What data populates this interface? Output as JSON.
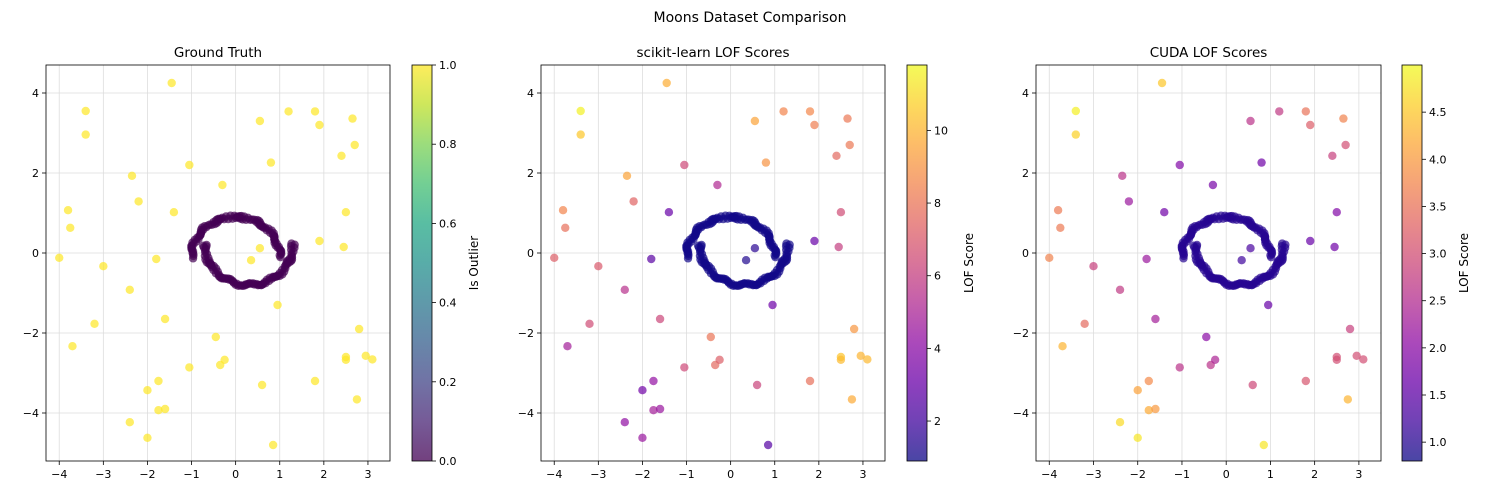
{
  "figure": {
    "suptitle": "Moons Dataset Comparison"
  },
  "colors": {
    "viridis": [
      "#440154",
      "#482475",
      "#414487",
      "#355f8d",
      "#2a788e",
      "#21918c",
      "#22a884",
      "#44bf70",
      "#7ad151",
      "#bddf26",
      "#fde725"
    ],
    "plasma": [
      "#0d0887",
      "#41049d",
      "#6a00a8",
      "#8f0da4",
      "#b12a90",
      "#cc4778",
      "#e16462",
      "#f2844b",
      "#fca636",
      "#fcce25",
      "#f0f921"
    ],
    "grid": "#dddddd"
  },
  "chart_data": [
    {
      "type": "scatter",
      "title": "Ground Truth",
      "xlabel": "",
      "ylabel": "",
      "xlim": [
        -4.3,
        3.5
      ],
      "ylim": [
        -5.2,
        4.7
      ],
      "xticks": [
        -4,
        -3,
        -2,
        -1,
        0,
        1,
        2,
        3
      ],
      "yticks": [
        -4,
        -2,
        0,
        2,
        4
      ],
      "grid": true,
      "colormap": "viridis",
      "color_range": [
        0.0,
        1.0
      ],
      "colorbar": {
        "label": "Is Outlier",
        "ticks": [
          0.0,
          0.2,
          0.4,
          0.6,
          0.8,
          1.0
        ],
        "tick_labels": [
          "0.0",
          "0.2",
          "0.4",
          "0.6",
          "0.8",
          "1.0"
        ]
      },
      "inlier_value": 0.0,
      "outliers": [
        {
          "x": -4.0,
          "y": -0.12,
          "c": 1.0
        },
        {
          "x": -3.8,
          "y": 1.07,
          "c": 1.0
        },
        {
          "x": -3.75,
          "y": 0.63,
          "c": 1.0
        },
        {
          "x": -3.7,
          "y": -2.33,
          "c": 1.0
        },
        {
          "x": -3.4,
          "y": 3.55,
          "c": 1.0
        },
        {
          "x": -3.4,
          "y": 2.96,
          "c": 1.0
        },
        {
          "x": -3.0,
          "y": -0.33,
          "c": 1.0
        },
        {
          "x": -3.2,
          "y": -1.77,
          "c": 1.0
        },
        {
          "x": -2.35,
          "y": 1.93,
          "c": 1.0
        },
        {
          "x": -2.4,
          "y": -0.92,
          "c": 1.0
        },
        {
          "x": -2.2,
          "y": 1.29,
          "c": 1.0
        },
        {
          "x": -2.4,
          "y": -4.23,
          "c": 1.0
        },
        {
          "x": -2.0,
          "y": -3.43,
          "c": 1.0
        },
        {
          "x": -2.0,
          "y": -4.62,
          "c": 1.0
        },
        {
          "x": -1.8,
          "y": -0.15,
          "c": 1.0
        },
        {
          "x": -1.75,
          "y": -3.2,
          "c": 1.0
        },
        {
          "x": -1.75,
          "y": -3.93,
          "c": 1.0
        },
        {
          "x": -1.6,
          "y": -3.9,
          "c": 1.0
        },
        {
          "x": -1.6,
          "y": -1.65,
          "c": 1.0
        },
        {
          "x": -1.45,
          "y": 4.25,
          "c": 1.0
        },
        {
          "x": -1.4,
          "y": 1.02,
          "c": 1.0
        },
        {
          "x": -1.05,
          "y": 2.2,
          "c": 1.0
        },
        {
          "x": -1.05,
          "y": -2.86,
          "c": 1.0
        },
        {
          "x": -0.45,
          "y": -2.1,
          "c": 1.0
        },
        {
          "x": -0.35,
          "y": -2.8,
          "c": 1.0
        },
        {
          "x": -0.3,
          "y": 1.7,
          "c": 1.0
        },
        {
          "x": -0.25,
          "y": -2.67,
          "c": 1.0
        },
        {
          "x": 0.35,
          "y": -0.18,
          "c": 1.0
        },
        {
          "x": 0.55,
          "y": 0.12,
          "c": 1.0
        },
        {
          "x": 0.55,
          "y": 3.3,
          "c": 1.0
        },
        {
          "x": 0.6,
          "y": -3.3,
          "c": 1.0
        },
        {
          "x": 0.8,
          "y": 2.26,
          "c": 1.0
        },
        {
          "x": 0.85,
          "y": -4.8,
          "c": 1.0
        },
        {
          "x": 0.95,
          "y": -1.3,
          "c": 1.0
        },
        {
          "x": 1.2,
          "y": 3.54,
          "c": 1.0
        },
        {
          "x": 1.8,
          "y": 3.54,
          "c": 1.0
        },
        {
          "x": 1.9,
          "y": 3.2,
          "c": 1.0
        },
        {
          "x": 1.9,
          "y": 0.3,
          "c": 1.0
        },
        {
          "x": 1.8,
          "y": -3.2,
          "c": 1.0
        },
        {
          "x": 2.4,
          "y": 2.43,
          "c": 1.0
        },
        {
          "x": 2.45,
          "y": 0.15,
          "c": 1.0
        },
        {
          "x": 2.5,
          "y": 1.02,
          "c": 1.0
        },
        {
          "x": 2.5,
          "y": -2.6,
          "c": 1.0
        },
        {
          "x": 2.5,
          "y": -2.67,
          "c": 1.0
        },
        {
          "x": 2.65,
          "y": 3.36,
          "c": 1.0
        },
        {
          "x": 2.7,
          "y": 2.7,
          "c": 1.0
        },
        {
          "x": 2.75,
          "y": -3.66,
          "c": 1.0
        },
        {
          "x": 2.8,
          "y": -1.9,
          "c": 1.0
        },
        {
          "x": 2.95,
          "y": -2.57,
          "c": 1.0
        },
        {
          "x": 3.1,
          "y": -2.66,
          "c": 1.0
        }
      ]
    },
    {
      "type": "scatter",
      "title": "scikit-learn LOF Scores",
      "xlabel": "",
      "ylabel": "",
      "xlim": [
        -4.3,
        3.5
      ],
      "ylim": [
        -5.2,
        4.7
      ],
      "xticks": [
        -4,
        -3,
        -2,
        -1,
        0,
        1,
        2,
        3
      ],
      "yticks": [
        -4,
        -2,
        0,
        2,
        4
      ],
      "grid": true,
      "colormap": "plasma",
      "color_range": [
        0.9,
        11.8
      ],
      "colorbar": {
        "label": "LOF Score",
        "ticks": [
          2,
          4,
          6,
          8,
          10
        ],
        "tick_labels": [
          "2",
          "4",
          "6",
          "8",
          "10"
        ]
      },
      "inlier_value": 1.0,
      "outliers": [
        {
          "x": -4.0,
          "y": -0.12,
          "c": 7.2
        },
        {
          "x": -3.8,
          "y": 1.07,
          "c": 8.5
        },
        {
          "x": -3.75,
          "y": 0.63,
          "c": 7.8
        },
        {
          "x": -3.7,
          "y": -2.33,
          "c": 4.8
        },
        {
          "x": -3.4,
          "y": 3.55,
          "c": 11.6
        },
        {
          "x": -3.4,
          "y": 2.96,
          "c": 10.5
        },
        {
          "x": -3.0,
          "y": -0.33,
          "c": 7.0
        },
        {
          "x": -3.2,
          "y": -1.77,
          "c": 6.5
        },
        {
          "x": -2.35,
          "y": 1.93,
          "c": 9.5
        },
        {
          "x": -2.4,
          "y": -0.92,
          "c": 5.5
        },
        {
          "x": -2.2,
          "y": 1.29,
          "c": 7.4
        },
        {
          "x": -2.4,
          "y": -4.23,
          "c": 4.2
        },
        {
          "x": -2.0,
          "y": -3.43,
          "c": 3.3
        },
        {
          "x": -2.0,
          "y": -4.62,
          "c": 4.5
        },
        {
          "x": -1.8,
          "y": -0.15,
          "c": 2.6
        },
        {
          "x": -1.75,
          "y": -3.2,
          "c": 4.3
        },
        {
          "x": -1.75,
          "y": -3.93,
          "c": 4.8
        },
        {
          "x": -1.6,
          "y": -3.9,
          "c": 4.5
        },
        {
          "x": -1.6,
          "y": -1.65,
          "c": 6.3
        },
        {
          "x": -1.45,
          "y": 4.25,
          "c": 9.8
        },
        {
          "x": -1.4,
          "y": 1.02,
          "c": 3.0
        },
        {
          "x": -1.05,
          "y": 2.2,
          "c": 6.4
        },
        {
          "x": -1.05,
          "y": -2.86,
          "c": 6.4
        },
        {
          "x": -0.45,
          "y": -2.1,
          "c": 8.0
        },
        {
          "x": -0.35,
          "y": -2.8,
          "c": 7.6
        },
        {
          "x": -0.3,
          "y": 1.7,
          "c": 5.2
        },
        {
          "x": -0.25,
          "y": -2.67,
          "c": 7.2
        },
        {
          "x": 0.35,
          "y": -0.18,
          "c": 1.3
        },
        {
          "x": 0.55,
          "y": 0.12,
          "c": 1.5
        },
        {
          "x": 0.55,
          "y": 3.3,
          "c": 9.5
        },
        {
          "x": 0.6,
          "y": -3.3,
          "c": 6.2
        },
        {
          "x": 0.8,
          "y": 2.26,
          "c": 9.0
        },
        {
          "x": 0.85,
          "y": -4.8,
          "c": 2.5
        },
        {
          "x": 0.95,
          "y": -1.3,
          "c": 3.2
        },
        {
          "x": 1.2,
          "y": 3.54,
          "c": 8.5
        },
        {
          "x": 1.8,
          "y": 3.54,
          "c": 8.6
        },
        {
          "x": 1.9,
          "y": 3.2,
          "c": 8.3
        },
        {
          "x": 1.9,
          "y": 0.3,
          "c": 3.0
        },
        {
          "x": 1.8,
          "y": -3.2,
          "c": 7.8
        },
        {
          "x": 2.4,
          "y": 2.43,
          "c": 7.6
        },
        {
          "x": 2.45,
          "y": 0.15,
          "c": 6.0
        },
        {
          "x": 2.5,
          "y": 1.02,
          "c": 6.5
        },
        {
          "x": 2.5,
          "y": -2.6,
          "c": 10.4
        },
        {
          "x": 2.5,
          "y": -2.67,
          "c": 10.2
        },
        {
          "x": 2.65,
          "y": 3.36,
          "c": 8.1
        },
        {
          "x": 2.7,
          "y": 2.7,
          "c": 8.1
        },
        {
          "x": 2.75,
          "y": -3.66,
          "c": 9.7
        },
        {
          "x": 2.8,
          "y": -1.9,
          "c": 9.1
        },
        {
          "x": 2.95,
          "y": -2.57,
          "c": 10.0
        },
        {
          "x": 3.1,
          "y": -2.66,
          "c": 10.1
        }
      ]
    },
    {
      "type": "scatter",
      "title": "CUDA LOF Scores",
      "xlabel": "",
      "ylabel": "",
      "xlim": [
        -4.3,
        3.5
      ],
      "ylim": [
        -5.2,
        4.7
      ],
      "xticks": [
        -4,
        -3,
        -2,
        -1,
        0,
        1,
        2,
        3
      ],
      "yticks": [
        -4,
        -2,
        0,
        2,
        4
      ],
      "grid": true,
      "colormap": "plasma",
      "color_range": [
        0.8,
        5.0
      ],
      "colorbar": {
        "label": "LOF Score",
        "ticks": [
          1.0,
          1.5,
          2.0,
          2.5,
          3.0,
          3.5,
          4.0,
          4.5
        ],
        "tick_labels": [
          "1.0",
          "1.5",
          "2.0",
          "2.5",
          "3.0",
          "3.5",
          "4.0",
          "4.5"
        ]
      },
      "inlier_value": 1.0,
      "outliers": [
        {
          "x": -4.0,
          "y": -0.12,
          "c": 3.7
        },
        {
          "x": -3.8,
          "y": 1.07,
          "c": 3.6
        },
        {
          "x": -3.75,
          "y": 0.63,
          "c": 3.6
        },
        {
          "x": -3.7,
          "y": -2.33,
          "c": 4.3
        },
        {
          "x": -3.4,
          "y": 3.55,
          "c": 4.9
        },
        {
          "x": -3.4,
          "y": 2.96,
          "c": 4.6
        },
        {
          "x": -3.0,
          "y": -0.33,
          "c": 2.8
        },
        {
          "x": -3.2,
          "y": -1.77,
          "c": 3.4
        },
        {
          "x": -2.35,
          "y": 1.93,
          "c": 2.6
        },
        {
          "x": -2.4,
          "y": -0.92,
          "c": 2.7
        },
        {
          "x": -2.2,
          "y": 1.29,
          "c": 2.2
        },
        {
          "x": -2.4,
          "y": -4.23,
          "c": 4.7
        },
        {
          "x": -2.0,
          "y": -3.43,
          "c": 4.1
        },
        {
          "x": -2.0,
          "y": -4.62,
          "c": 4.8
        },
        {
          "x": -1.8,
          "y": -0.15,
          "c": 2.2
        },
        {
          "x": -1.75,
          "y": -3.2,
          "c": 3.8
        },
        {
          "x": -1.75,
          "y": -3.93,
          "c": 4.2
        },
        {
          "x": -1.6,
          "y": -3.9,
          "c": 4.0
        },
        {
          "x": -1.6,
          "y": -1.65,
          "c": 2.3
        },
        {
          "x": -1.45,
          "y": 4.25,
          "c": 4.5
        },
        {
          "x": -1.4,
          "y": 1.02,
          "c": 1.7
        },
        {
          "x": -1.05,
          "y": 2.2,
          "c": 1.9
        },
        {
          "x": -1.05,
          "y": -2.86,
          "c": 2.6
        },
        {
          "x": -0.45,
          "y": -2.1,
          "c": 2.0
        },
        {
          "x": -0.35,
          "y": -2.8,
          "c": 2.6
        },
        {
          "x": -0.3,
          "y": 1.7,
          "c": 1.8
        },
        {
          "x": -0.25,
          "y": -2.67,
          "c": 2.4
        },
        {
          "x": 0.35,
          "y": -0.18,
          "c": 1.2
        },
        {
          "x": 0.55,
          "y": 0.12,
          "c": 1.3
        },
        {
          "x": 0.55,
          "y": 3.3,
          "c": 2.6
        },
        {
          "x": 0.6,
          "y": -3.3,
          "c": 2.9
        },
        {
          "x": 0.8,
          "y": 2.26,
          "c": 1.7
        },
        {
          "x": 0.85,
          "y": -4.8,
          "c": 4.8
        },
        {
          "x": 0.95,
          "y": -1.3,
          "c": 1.6
        },
        {
          "x": 1.2,
          "y": 3.54,
          "c": 2.7
        },
        {
          "x": 1.8,
          "y": 3.54,
          "c": 3.5
        },
        {
          "x": 1.9,
          "y": 3.2,
          "c": 3.2
        },
        {
          "x": 1.9,
          "y": 0.3,
          "c": 1.6
        },
        {
          "x": 1.8,
          "y": -3.2,
          "c": 3.1
        },
        {
          "x": 2.4,
          "y": 2.43,
          "c": 2.8
        },
        {
          "x": 2.45,
          "y": 0.15,
          "c": 1.7
        },
        {
          "x": 2.5,
          "y": 1.02,
          "c": 1.9
        },
        {
          "x": 2.5,
          "y": -2.6,
          "c": 3.0
        },
        {
          "x": 2.5,
          "y": -2.67,
          "c": 3.0
        },
        {
          "x": 2.65,
          "y": 3.36,
          "c": 3.7
        },
        {
          "x": 2.7,
          "y": 2.7,
          "c": 3.0
        },
        {
          "x": 2.75,
          "y": -3.66,
          "c": 4.3
        },
        {
          "x": 2.8,
          "y": -1.9,
          "c": 2.8
        },
        {
          "x": 2.95,
          "y": -2.57,
          "c": 3.0
        },
        {
          "x": 3.1,
          "y": -2.66,
          "c": 3.0
        }
      ]
    }
  ]
}
